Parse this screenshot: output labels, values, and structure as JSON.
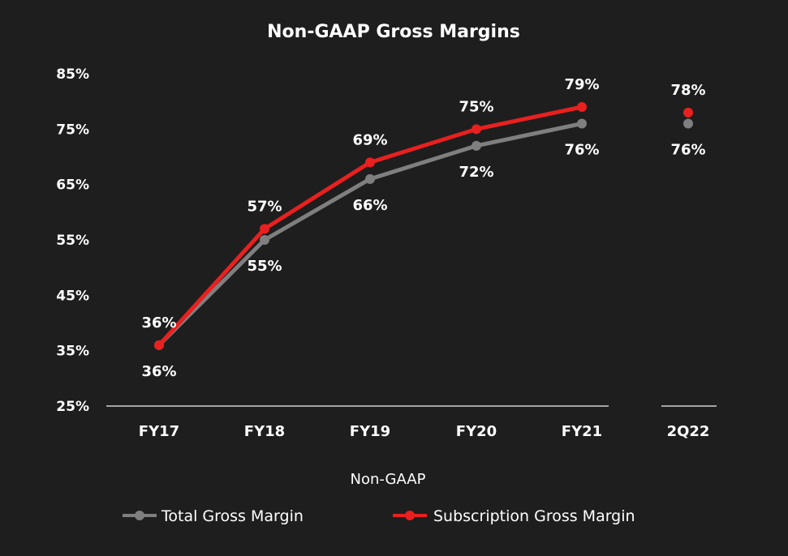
{
  "chart_data": {
    "type": "line",
    "title": "Non-GAAP Gross Margins",
    "xlabel": "Non-GAAP",
    "ylabel": "",
    "categories": [
      "FY17",
      "FY18",
      "FY19",
      "FY20",
      "FY21",
      "2Q22"
    ],
    "yticks": [
      "85%",
      "75%",
      "65%",
      "55%",
      "45%",
      "35%",
      "25%"
    ],
    "ylim": [
      25,
      85
    ],
    "grid": false,
    "legend_position": "bottom",
    "series": [
      {
        "name": "Total Gross Margin",
        "color": "#7f7f7f",
        "values": [
          36,
          55,
          66,
          72,
          76,
          76
        ],
        "labels": [
          "36%",
          "55%",
          "66%",
          "72%",
          "76%",
          "76%"
        ],
        "label_position": "below"
      },
      {
        "name": "Subscription Gross Margin",
        "color": "#e8201f",
        "values": [
          36,
          57,
          69,
          75,
          79,
          78
        ],
        "labels": [
          "36%",
          "57%",
          "69%",
          "75%",
          "79%",
          "78%"
        ],
        "label_position": "above"
      }
    ],
    "note": "2Q22 shown as separate points, not connected to the FY line"
  }
}
